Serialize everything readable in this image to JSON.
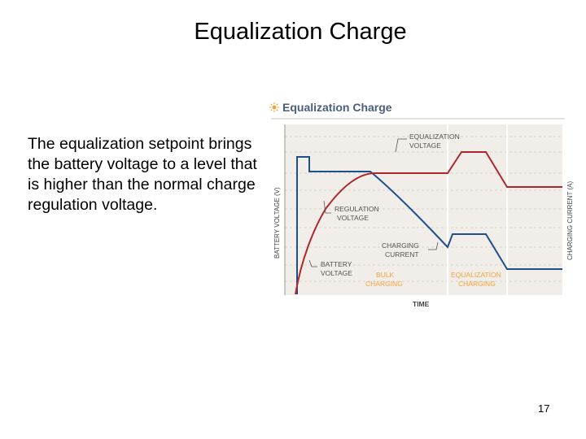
{
  "slide": {
    "title": "Equalization Charge",
    "body": "The equalization setpoint brings the battery voltage to a level that is higher than the normal charge regulation voltage.",
    "page_number": "17"
  },
  "figure": {
    "title": "Equalization Charge",
    "y_left_label": "BATTERY VOLTAGE (V)",
    "y_right_label": "CHARGING CURRENT (A)",
    "x_label": "TIME",
    "annotations": {
      "equalization_voltage": [
        "EQUALIZATION",
        "VOLTAGE"
      ],
      "regulation_voltage": [
        "REGULATION",
        "VOLTAGE"
      ],
      "charging_current": [
        "CHARGING",
        "CURRENT"
      ],
      "battery_voltage": [
        "BATTERY",
        "VOLTAGE"
      ]
    },
    "regions": {
      "bulk": [
        "BULK",
        "CHARGING"
      ],
      "equalization": [
        "EQUALIZATION",
        "CHARGING"
      ]
    },
    "colors": {
      "voltage_curve": "#b0272b",
      "current_curve": "#1f4e8c",
      "plot_background": "#f1eee9",
      "title_color": "#4a5f7e",
      "accent_orange": "#f2a23a"
    }
  }
}
